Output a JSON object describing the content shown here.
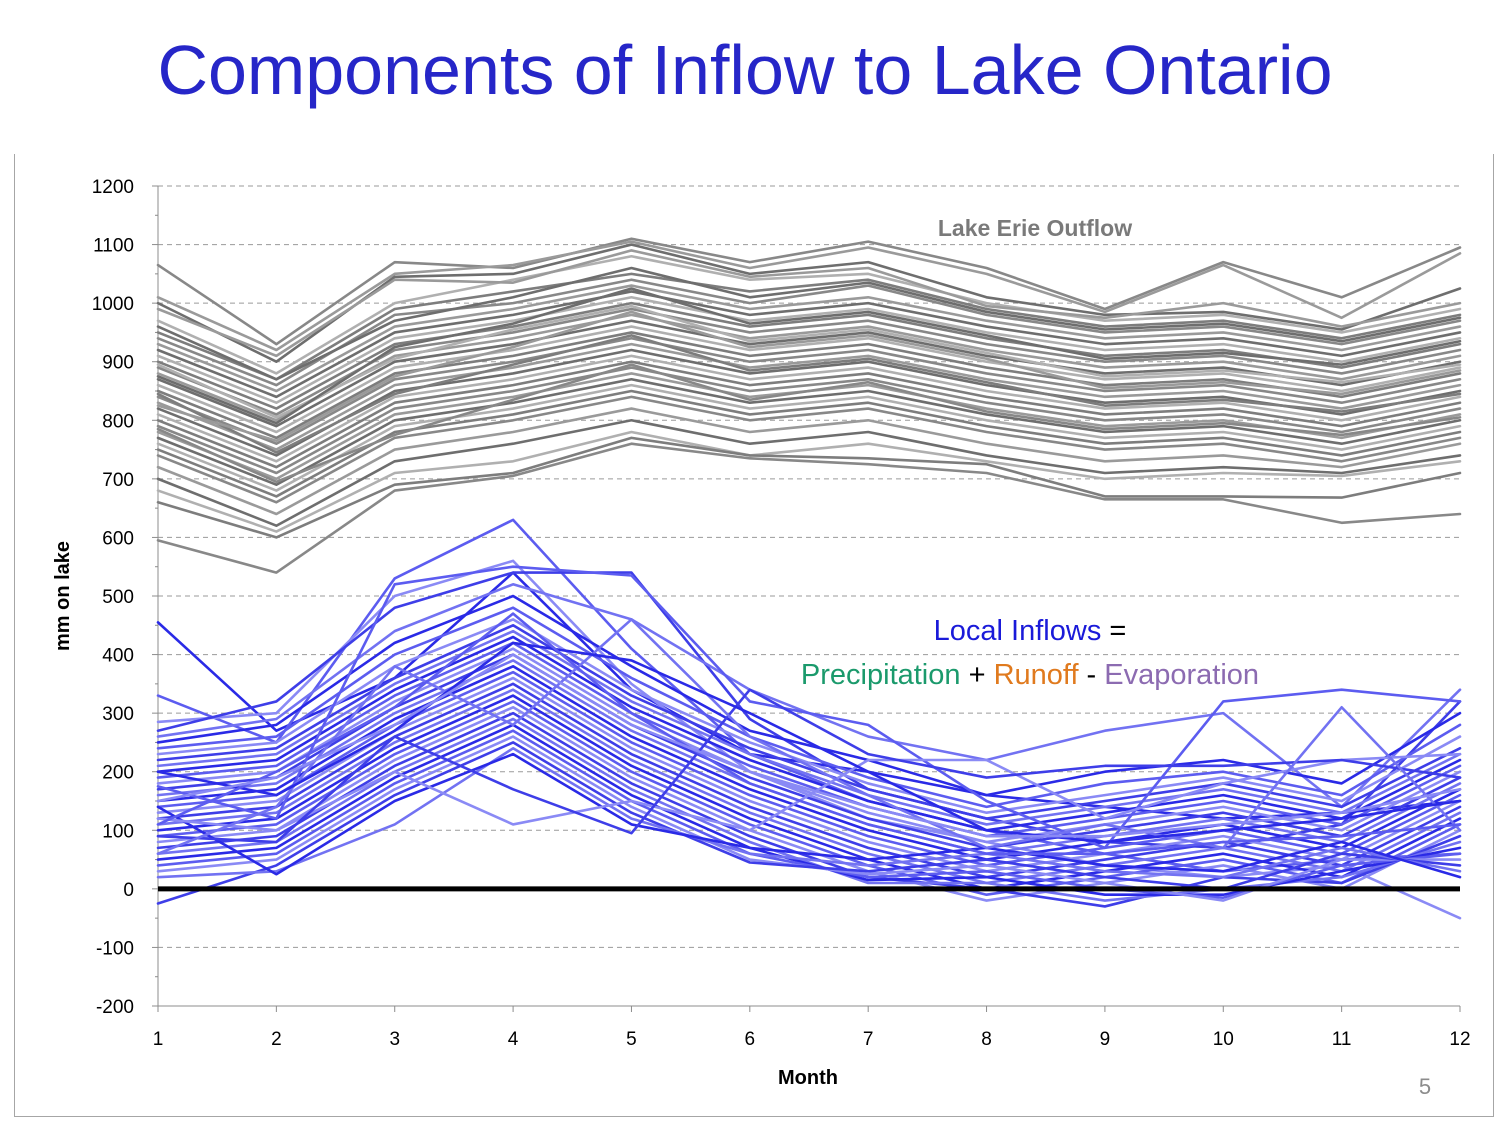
{
  "slide": {
    "title": "Components of Inflow to Lake Ontario",
    "page_number": "5"
  },
  "colors": {
    "title": "#2626c8",
    "outflow_lines": [
      "#888888",
      "#9a9a9a",
      "#6e6e6e",
      "#b0b0b0",
      "#7d7d7d"
    ],
    "inflow_lines": [
      "#2a2ae6",
      "#5c5cf0",
      "#8a8af5",
      "#3e3ee8",
      "#7272f2"
    ],
    "zero_line": "#000000",
    "local_inflows": "#1a1ad9",
    "precipitation": "#1b9a6c",
    "runoff": "#e07a1e",
    "evaporation": "#8c6bb1"
  },
  "annotations": {
    "outflow_label": "Lake Erie Outflow",
    "local_inflows": "Local Inflows",
    "equals": " =",
    "precipitation": "Precipitation",
    "plus": " + ",
    "runoff": "Runoff",
    "minus": " - ",
    "evaporation": "Evaporation"
  },
  "chart_data": {
    "type": "line",
    "xlabel": "Month",
    "ylabel": "mm on lake",
    "x": [
      1,
      2,
      3,
      4,
      5,
      6,
      7,
      8,
      9,
      10,
      11,
      12
    ],
    "xlim": [
      1,
      12
    ],
    "ylim": [
      -200,
      1200
    ],
    "yticks": [
      -200,
      -100,
      0,
      100,
      200,
      300,
      400,
      500,
      600,
      700,
      800,
      900,
      1000,
      1100,
      1200
    ],
    "grid": "horizontal dashed",
    "reference_line": 0,
    "outflow_series": [
      {
        "values": [
          1065,
          930,
          1070,
          1060,
          1110,
          1070,
          1105,
          1060,
          990,
          1070,
          1010,
          1095
        ]
      },
      {
        "values": [
          1010,
          920,
          1050,
          1065,
          1105,
          1060,
          1095,
          1050,
          985,
          1065,
          975,
          1085
        ]
      },
      {
        "values": [
          1000,
          900,
          1045,
          1050,
          1100,
          1050,
          1070,
          1010,
          980,
          985,
          955,
          1025
        ]
      },
      {
        "values": [
          970,
          880,
          1000,
          1040,
          1080,
          1040,
          1050,
          1000,
          970,
          980,
          950,
          990
        ]
      },
      {
        "values": [
          950,
          870,
          990,
          1020,
          1050,
          1020,
          1040,
          990,
          960,
          970,
          940,
          980
        ]
      },
      {
        "values": [
          940,
          860,
          980,
          1000,
          1040,
          1000,
          1030,
          980,
          950,
          960,
          930,
          970
        ]
      },
      {
        "values": [
          930,
          850,
          960,
          990,
          1030,
          990,
          1010,
          970,
          940,
          950,
          920,
          960
        ]
      },
      {
        "values": [
          920,
          840,
          950,
          980,
          1020,
          980,
          1000,
          960,
          930,
          940,
          910,
          950
        ]
      },
      {
        "values": [
          910,
          830,
          940,
          970,
          1010,
          970,
          990,
          950,
          920,
          930,
          900,
          940
        ]
      },
      {
        "values": [
          900,
          820,
          930,
          960,
          1000,
          960,
          980,
          940,
          910,
          920,
          890,
          930
        ]
      },
      {
        "values": [
          890,
          810,
          920,
          950,
          990,
          950,
          970,
          930,
          900,
          910,
          880,
          920
        ]
      },
      {
        "values": [
          880,
          800,
          910,
          940,
          980,
          940,
          960,
          920,
          890,
          900,
          870,
          910
        ]
      },
      {
        "values": [
          870,
          790,
          900,
          930,
          970,
          930,
          950,
          910,
          880,
          890,
          860,
          900
        ]
      },
      {
        "values": [
          860,
          780,
          890,
          920,
          960,
          920,
          940,
          900,
          870,
          880,
          850,
          890
        ]
      },
      {
        "values": [
          850,
          770,
          880,
          910,
          950,
          910,
          930,
          890,
          860,
          870,
          840,
          880
        ]
      },
      {
        "values": [
          840,
          760,
          870,
          900,
          940,
          900,
          920,
          880,
          850,
          860,
          830,
          870
        ]
      },
      {
        "values": [
          830,
          750,
          860,
          890,
          930,
          890,
          910,
          870,
          840,
          850,
          820,
          860
        ]
      },
      {
        "values": [
          820,
          740,
          850,
          880,
          920,
          880,
          900,
          860,
          830,
          840,
          810,
          850
        ]
      },
      {
        "values": [
          810,
          730,
          840,
          870,
          910,
          870,
          890,
          850,
          820,
          830,
          800,
          840
        ]
      },
      {
        "values": [
          800,
          720,
          830,
          860,
          900,
          860,
          880,
          840,
          810,
          820,
          790,
          830
        ]
      },
      {
        "values": [
          790,
          710,
          820,
          850,
          890,
          850,
          870,
          830,
          800,
          810,
          780,
          820
        ]
      },
      {
        "values": [
          780,
          700,
          810,
          840,
          880,
          840,
          860,
          820,
          790,
          800,
          770,
          810
        ]
      },
      {
        "values": [
          770,
          690,
          800,
          830,
          870,
          830,
          850,
          810,
          780,
          790,
          760,
          800
        ]
      },
      {
        "values": [
          760,
          680,
          790,
          820,
          860,
          820,
          840,
          800,
          770,
          780,
          750,
          790
        ]
      },
      {
        "values": [
          750,
          670,
          780,
          810,
          850,
          810,
          830,
          790,
          760,
          770,
          740,
          780
        ]
      },
      {
        "values": [
          740,
          660,
          770,
          800,
          840,
          800,
          820,
          780,
          750,
          760,
          730,
          770
        ]
      },
      {
        "values": [
          720,
          640,
          750,
          780,
          820,
          780,
          800,
          760,
          730,
          740,
          720,
          760
        ]
      },
      {
        "values": [
          700,
          620,
          730,
          760,
          800,
          760,
          780,
          740,
          710,
          720,
          710,
          740
        ]
      },
      {
        "values": [
          680,
          610,
          710,
          730,
          780,
          740,
          760,
          730,
          700,
          710,
          705,
          730
        ]
      },
      {
        "values": [
          660,
          600,
          690,
          710,
          770,
          740,
          735,
          725,
          670,
          670,
          668,
          710
        ]
      },
      {
        "values": [
          595,
          540,
          680,
          705,
          760,
          735,
          725,
          710,
          665,
          665,
          625,
          640
        ]
      },
      {
        "values": [
          990,
          910,
          1040,
          1035,
          1090,
          1045,
          1060,
          995,
          975,
          1000,
          960,
          1000
        ]
      },
      {
        "values": [
          960,
          870,
          970,
          1010,
          1060,
          1010,
          1035,
          985,
          955,
          965,
          935,
          975
        ]
      },
      {
        "values": [
          895,
          805,
          905,
          955,
          995,
          935,
          955,
          915,
          875,
          885,
          865,
          895
        ]
      },
      {
        "values": [
          845,
          745,
          845,
          895,
          945,
          885,
          905,
          865,
          825,
          835,
          815,
          845
        ]
      },
      {
        "values": [
          785,
          695,
          775,
          835,
          895,
          835,
          865,
          815,
          785,
          795,
          775,
          805
        ]
      },
      {
        "values": [
          825,
          765,
          875,
          925,
          985,
          925,
          945,
          905,
          855,
          865,
          845,
          885
        ]
      },
      {
        "values": [
          875,
          795,
          925,
          965,
          1025,
          965,
          985,
          945,
          905,
          915,
          895,
          935
        ]
      }
    ],
    "inflow_series": [
      {
        "values": [
          455,
          270,
          360,
          540,
          340,
          230,
          200,
          160,
          140,
          120,
          130,
          150
        ]
      },
      {
        "values": [
          330,
          250,
          530,
          630,
          410,
          230,
          150,
          100,
          60,
          30,
          50,
          60
        ]
      },
      {
        "values": [
          285,
          300,
          500,
          560,
          350,
          200,
          120,
          80,
          40,
          20,
          40,
          -50
        ]
      },
      {
        "values": [
          270,
          320,
          480,
          540,
          540,
          290,
          170,
          120,
          80,
          70,
          110,
          320
        ]
      },
      {
        "values": [
          260,
          290,
          440,
          520,
          460,
          340,
          260,
          220,
          270,
          300,
          140,
          340
        ]
      },
      {
        "values": [
          250,
          280,
          420,
          500,
          380,
          270,
          220,
          160,
          200,
          220,
          180,
          300
        ]
      },
      {
        "values": [
          240,
          260,
          400,
          480,
          360,
          260,
          190,
          140,
          180,
          200,
          160,
          280
        ]
      },
      {
        "values": [
          230,
          250,
          380,
          460,
          340,
          250,
          180,
          130,
          160,
          190,
          150,
          260
        ]
      },
      {
        "values": [
          220,
          240,
          360,
          450,
          330,
          240,
          170,
          120,
          150,
          180,
          140,
          240
        ]
      },
      {
        "values": [
          210,
          230,
          350,
          440,
          320,
          230,
          160,
          110,
          140,
          170,
          130,
          230
        ]
      },
      {
        "values": [
          200,
          220,
          340,
          430,
          310,
          220,
          150,
          100,
          130,
          160,
          120,
          220
        ]
      },
      {
        "values": [
          190,
          210,
          330,
          420,
          300,
          210,
          140,
          90,
          120,
          150,
          110,
          210
        ]
      },
      {
        "values": [
          180,
          200,
          320,
          410,
          290,
          200,
          130,
          80,
          110,
          140,
          100,
          200
        ]
      },
      {
        "values": [
          170,
          190,
          310,
          400,
          280,
          190,
          120,
          70,
          100,
          130,
          90,
          190
        ]
      },
      {
        "values": [
          160,
          180,
          300,
          390,
          270,
          180,
          110,
          60,
          90,
          120,
          80,
          180
        ]
      },
      {
        "values": [
          150,
          170,
          290,
          380,
          260,
          170,
          100,
          50,
          80,
          110,
          70,
          170
        ]
      },
      {
        "values": [
          140,
          160,
          280,
          370,
          250,
          160,
          90,
          40,
          70,
          100,
          60,
          160
        ]
      },
      {
        "values": [
          130,
          150,
          270,
          360,
          240,
          150,
          80,
          30,
          60,
          90,
          50,
          150
        ]
      },
      {
        "values": [
          120,
          140,
          260,
          350,
          230,
          140,
          70,
          20,
          50,
          80,
          40,
          140
        ]
      },
      {
        "values": [
          110,
          130,
          250,
          340,
          220,
          130,
          60,
          10,
          40,
          70,
          30,
          130
        ]
      },
      {
        "values": [
          100,
          120,
          240,
          330,
          210,
          120,
          50,
          0,
          30,
          60,
          20,
          120
        ]
      },
      {
        "values": [
          90,
          110,
          230,
          320,
          200,
          110,
          40,
          -10,
          20,
          50,
          10,
          110
        ]
      },
      {
        "values": [
          80,
          100,
          220,
          310,
          190,
          100,
          30,
          -20,
          10,
          40,
          0,
          100
        ]
      },
      {
        "values": [
          70,
          90,
          210,
          300,
          180,
          90,
          20,
          0,
          -30,
          20,
          10,
          90
        ]
      },
      {
        "values": [
          60,
          80,
          200,
          290,
          170,
          80,
          10,
          10,
          -20,
          0,
          20,
          80
        ]
      },
      {
        "values": [
          50,
          70,
          190,
          280,
          160,
          70,
          15,
          20,
          -10,
          -10,
          30,
          70
        ]
      },
      {
        "values": [
          40,
          60,
          180,
          270,
          150,
          60,
          20,
          30,
          0,
          -15,
          40,
          60
        ]
      },
      {
        "values": [
          30,
          50,
          170,
          260,
          140,
          50,
          25,
          40,
          10,
          -20,
          50,
          50
        ]
      },
      {
        "values": [
          -25,
          40,
          160,
          250,
          130,
          45,
          30,
          50,
          20,
          0,
          60,
          40
        ]
      },
      {
        "values": [
          20,
          30,
          110,
          240,
          120,
          60,
          40,
          60,
          30,
          20,
          70,
          30
        ]
      },
      {
        "values": [
          140,
          25,
          150,
          230,
          110,
          70,
          50,
          70,
          40,
          30,
          80,
          20
        ]
      },
      {
        "values": [
          175,
          120,
          520,
          550,
          535,
          320,
          280,
          150,
          70,
          320,
          340,
          320
        ]
      },
      {
        "values": [
          120,
          100,
          200,
          110,
          150,
          100,
          220,
          220,
          120,
          180,
          220,
          230
        ]
      },
      {
        "values": [
          90,
          80,
          260,
          170,
          95,
          340,
          230,
          190,
          210,
          210,
          220,
          190
        ]
      },
      {
        "values": [
          60,
          140,
          380,
          280,
          460,
          260,
          160,
          70,
          110,
          70,
          310,
          100
        ]
      },
      {
        "values": [
          200,
          160,
          270,
          420,
          390,
          300,
          200,
          100,
          80,
          100,
          120,
          150
        ]
      },
      {
        "values": [
          110,
          200,
          310,
          470,
          300,
          180,
          110,
          60,
          60,
          80,
          90,
          110
        ]
      },
      {
        "values": [
          150,
          190,
          280,
          400,
          280,
          200,
          140,
          90,
          90,
          110,
          130,
          170
        ]
      }
    ]
  }
}
